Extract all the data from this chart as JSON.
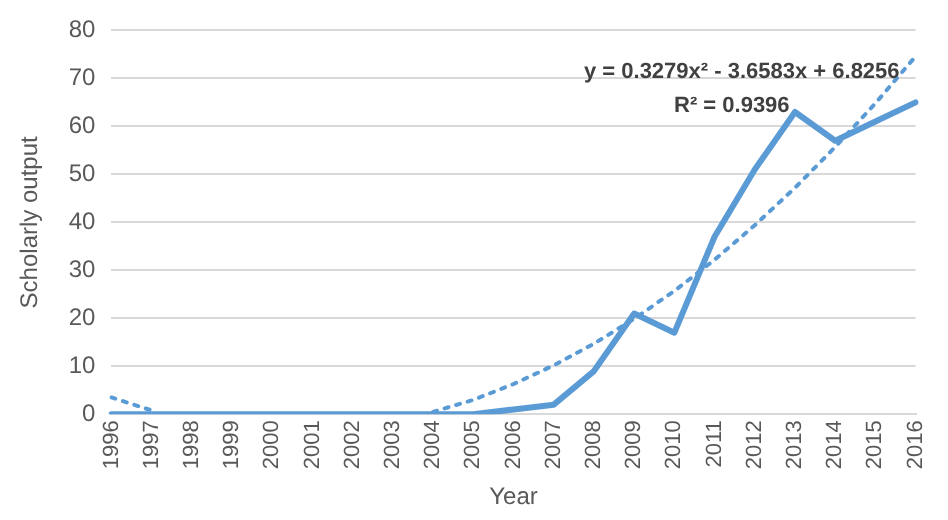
{
  "chart_data": {
    "type": "line",
    "xlabel": "Year",
    "ylabel": "Scholarly output",
    "categories": [
      "1996",
      "1997",
      "1998",
      "1999",
      "2000",
      "2001",
      "2002",
      "2003",
      "2004",
      "2005",
      "2006",
      "2007",
      "2008",
      "2009",
      "2010",
      "2011",
      "2012",
      "2013",
      "2014",
      "2015",
      "2016"
    ],
    "series": [
      {
        "color": "#5b9bd5",
        "line_style": "solid",
        "values": [
          0,
          0,
          0,
          0,
          0,
          0,
          0,
          0,
          0,
          0,
          1,
          2,
          9,
          21,
          17,
          37,
          51,
          63,
          57,
          61,
          65
        ]
      },
      {
        "color": "#5b9bd5",
        "line_style": "dotted",
        "values": [
          3.5,
          0.8,
          null,
          null,
          null,
          null,
          null,
          null,
          0.5,
          3.0,
          6.3,
          10.2,
          14.7,
          19.9,
          25.7,
          32.2,
          39.4,
          47.2,
          55.7,
          64.8,
          74.6
        ]
      }
    ],
    "ylim": [
      0,
      80
    ],
    "yticks": [
      0,
      10,
      20,
      30,
      40,
      50,
      60,
      70,
      80
    ],
    "grid": "y",
    "legend": false,
    "marker": "none",
    "annotations": [
      "y = 0.3279x² - 3.6583x + 6.8256",
      "R² = 0.9396"
    ]
  }
}
